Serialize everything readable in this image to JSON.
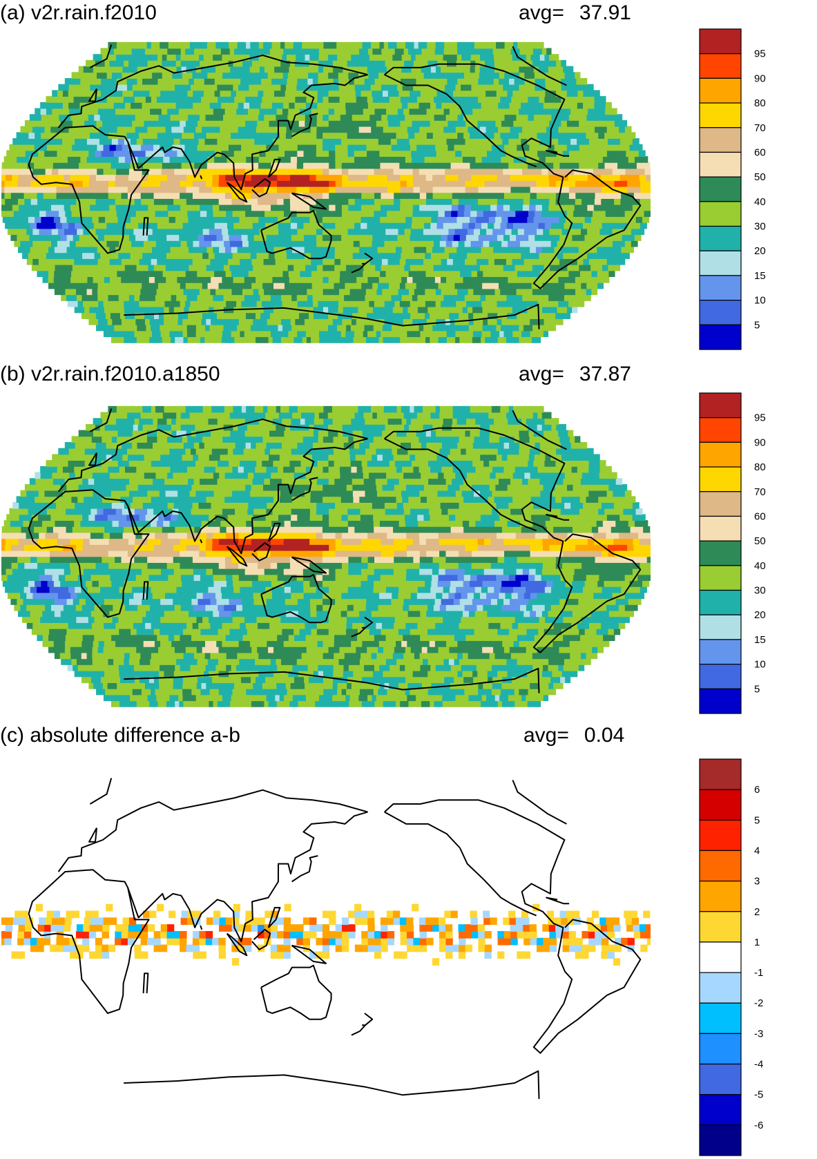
{
  "panels": [
    {
      "title": "(a) v2r.rain.f2010",
      "avg_label": "avg=",
      "avg_value": "37.91",
      "field": "a",
      "colorbar": {
        "labels": [
          "95",
          "90",
          "80",
          "70",
          "60",
          "50",
          "40",
          "30",
          "20",
          "15",
          "10",
          "5"
        ],
        "colors": [
          "#b22222",
          "#ff4500",
          "#ffa500",
          "#ffd700",
          "#deb887",
          "#f5deb3",
          "#2e8b57",
          "#9acd32",
          "#20b2aa",
          "#b0e0e6",
          "#6495ed",
          "#4169e1",
          "#0000cd"
        ]
      }
    },
    {
      "title": "(b) v2r.rain.f2010.a1850",
      "avg_label": "avg=",
      "avg_value": "37.87",
      "field": "b",
      "colorbar": {
        "labels": [
          "95",
          "90",
          "80",
          "70",
          "60",
          "50",
          "40",
          "30",
          "20",
          "15",
          "10",
          "5"
        ],
        "colors": [
          "#b22222",
          "#ff4500",
          "#ffa500",
          "#ffd700",
          "#deb887",
          "#f5deb3",
          "#2e8b57",
          "#9acd32",
          "#20b2aa",
          "#b0e0e6",
          "#6495ed",
          "#4169e1",
          "#0000cd"
        ]
      }
    },
    {
      "title": "(c) absolute difference a-b",
      "avg_label": "avg=",
      "avg_value": "0.04",
      "field": "diff",
      "colorbar": {
        "labels": [
          "6",
          "5",
          "4",
          "3",
          "2",
          "1",
          "-1",
          "-2",
          "-3",
          "-4",
          "-5",
          "-6"
        ],
        "colors": [
          "#a52a2a",
          "#d40000",
          "#ff2200",
          "#ff6a00",
          "#ffa500",
          "#ffd732",
          "#ffffff",
          "#a6d8ff",
          "#00bfff",
          "#1e90ff",
          "#4169e1",
          "#0000cd",
          "#00008b"
        ]
      }
    }
  ]
}
